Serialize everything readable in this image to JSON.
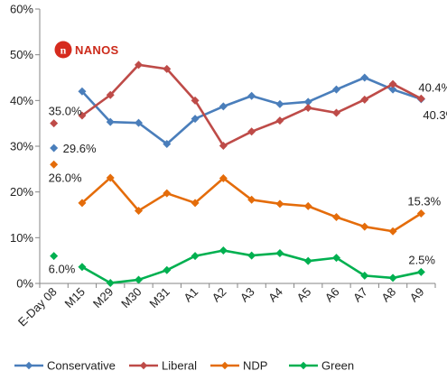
{
  "logo": {
    "text": "NANOS"
  },
  "chart_data": {
    "type": "line",
    "title": "",
    "xlabel": "",
    "ylabel": "",
    "ylim": [
      0,
      60
    ],
    "yticks": [
      "0%",
      "10%",
      "20%",
      "30%",
      "40%",
      "50%",
      "60%"
    ],
    "ytick_values": [
      0,
      10,
      20,
      30,
      40,
      50,
      60
    ],
    "grid": false,
    "legend_position": "bottom",
    "categories": [
      "E-Day 08",
      "M15",
      "M29",
      "M30",
      "M31",
      "A1",
      "A2",
      "A3",
      "A4",
      "A5",
      "A6",
      "A7",
      "A8",
      "A9"
    ],
    "series": [
      {
        "name": "Conservative",
        "color": "#4a7ebb",
        "values": [
          29.6,
          42.0,
          35.3,
          35.1,
          30.5,
          36.0,
          38.7,
          41.0,
          39.2,
          39.7,
          42.4,
          45.0,
          42.4,
          40.3
        ],
        "eday_label": "29.6%",
        "end_label": "40.3%"
      },
      {
        "name": "Liberal",
        "color": "#be4b48",
        "values": [
          35.0,
          36.7,
          41.2,
          47.8,
          46.9,
          40.0,
          30.1,
          33.2,
          35.6,
          38.4,
          37.3,
          40.2,
          43.6,
          40.4
        ],
        "eday_label": "35.0%",
        "end_label": "40.4%"
      },
      {
        "name": "NDP",
        "color": "#e46c0a",
        "values": [
          26.0,
          17.6,
          23.1,
          15.9,
          19.7,
          17.6,
          23.0,
          18.3,
          17.4,
          16.9,
          14.5,
          12.4,
          11.4,
          15.3
        ],
        "eday_label": "26.0%",
        "end_label": "15.3%"
      },
      {
        "name": "Green",
        "color": "#00b050",
        "values": [
          6.0,
          3.6,
          0.1,
          0.8,
          2.9,
          6.0,
          7.2,
          6.1,
          6.6,
          4.9,
          5.6,
          1.7,
          1.2,
          2.5
        ],
        "eday_label": "6.0%",
        "end_label": "2.5%"
      }
    ]
  }
}
